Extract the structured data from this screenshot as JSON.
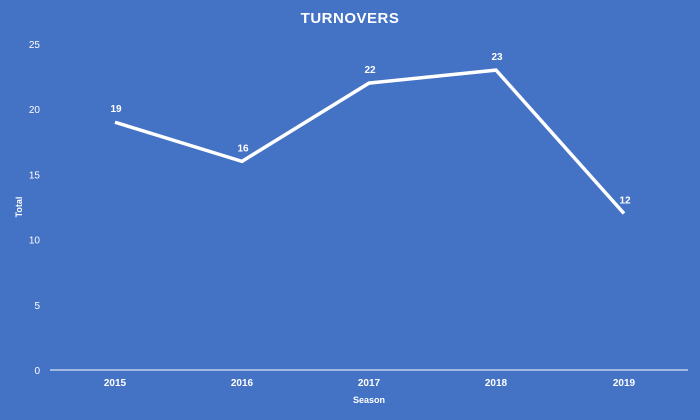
{
  "chart_data": {
    "type": "line",
    "title": "TURNOVERS",
    "xlabel": "Season",
    "ylabel": "Total",
    "categories": [
      "2015",
      "2016",
      "2017",
      "2018",
      "2019"
    ],
    "series": [
      {
        "name": "Turnovers",
        "values": [
          19,
          16,
          22,
          23,
          12
        ]
      }
    ],
    "data_labels": [
      "19",
      "16",
      "22",
      "23",
      "12"
    ],
    "yticks": [
      0,
      5,
      10,
      15,
      20,
      25
    ],
    "ylim": [
      0,
      25
    ],
    "grid": false,
    "drop_lines": true,
    "legend": "none"
  },
  "colors": {
    "background": "#4472c4",
    "line": "#ffffff",
    "text": "#ffffff"
  }
}
